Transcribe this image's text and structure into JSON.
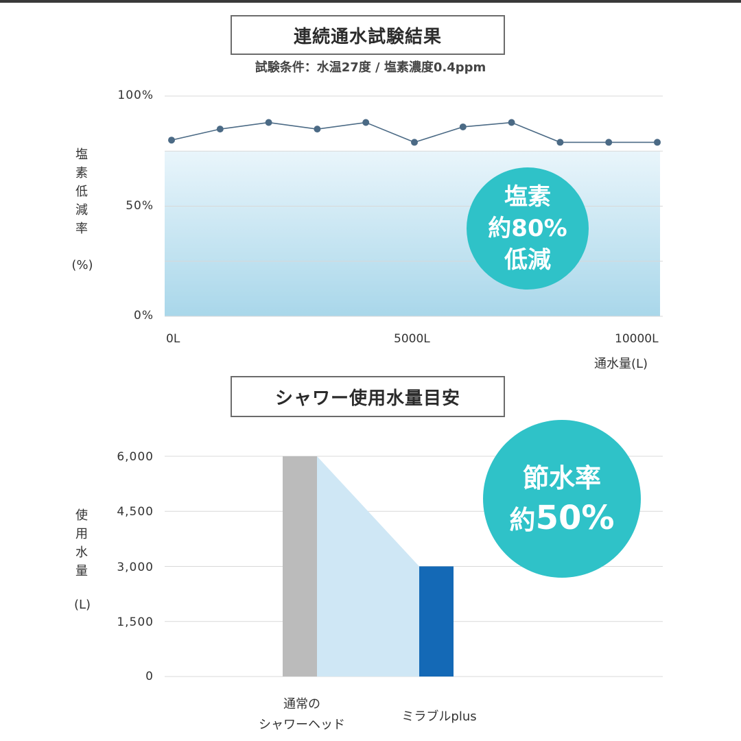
{
  "chart1": {
    "title": "連続通水試験結果",
    "subtitle": "試験条件：水温27度 / 塩素濃度0.4ppm",
    "ylabel_chars": [
      "塩",
      "素",
      "低",
      "減",
      "率"
    ],
    "ylabel_unit": "(%)",
    "ytick_labels": [
      "100%",
      "50%",
      "0%"
    ],
    "xtick_labels": [
      "0L",
      "5000L",
      "10000L"
    ],
    "xlabel": "通水量(L)",
    "badge_lines": [
      "塩素",
      "約80%",
      "低減"
    ]
  },
  "chart2": {
    "title": "シャワー使用水量目安",
    "ylabel_chars": [
      "使",
      "用",
      "水",
      "量"
    ],
    "ylabel_unit": "(L)",
    "ytick_labels": [
      "6,000",
      "4,500",
      "3,000",
      "1,500",
      "0"
    ],
    "bar_label_1_lines": [
      "通常の",
      "シャワーヘッド"
    ],
    "bar_label_2": "ミラブルplus",
    "badge_line1": "節水率",
    "badge_prefix": "約",
    "badge_value": "50%"
  },
  "colors": {
    "line": "#4b6a85",
    "area_top": "#e9f5fb",
    "area_bottom": "#a9d7ea",
    "badge": "#2fc2c8",
    "bar_normal": "#bbbbbb",
    "bar_mirable": "#1469b6",
    "wedge": "#cfe7f5"
  },
  "chart_data": [
    {
      "type": "line",
      "title": "連続通水試験結果",
      "subtitle": "試験条件：水温27度 / 塩素濃度0.4ppm",
      "xlabel": "通水量(L)",
      "ylabel": "塩素低減率(%)",
      "x": [
        0,
        1000,
        2000,
        3000,
        4000,
        5000,
        6000,
        7000,
        8000,
        9000,
        10000
      ],
      "y": [
        80,
        85,
        88,
        85,
        88,
        79,
        86,
        88,
        79,
        79,
        79
      ],
      "xlim": [
        0,
        10000
      ],
      "ylim": [
        0,
        100
      ],
      "yticks": [
        0,
        50,
        100
      ],
      "xticks": [
        0,
        5000,
        10000
      ],
      "grid": true
    },
    {
      "type": "bar",
      "title": "シャワー使用水量目安",
      "ylabel": "使用水量(L)",
      "categories": [
        "通常のシャワーヘッド",
        "ミラブルplus"
      ],
      "values": [
        6000,
        3000
      ],
      "ylim": [
        0,
        6000
      ],
      "yticks": [
        0,
        1500,
        3000,
        4500,
        6000
      ],
      "grid": true
    }
  ]
}
